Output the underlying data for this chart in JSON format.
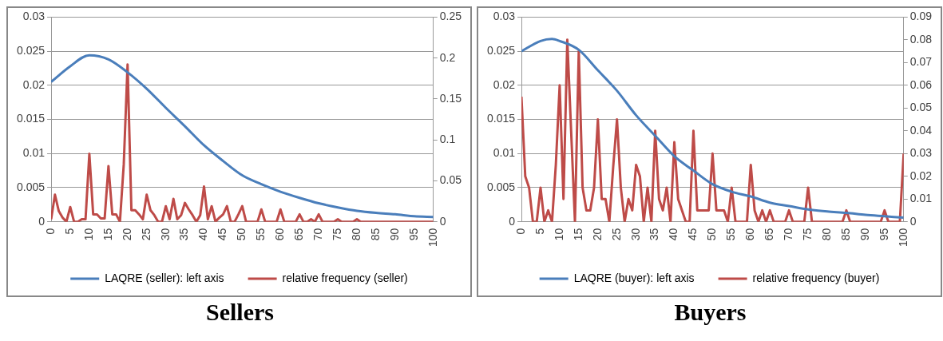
{
  "chart_data": [
    {
      "type": "line",
      "title": "Sellers",
      "xlim": [
        0,
        100
      ],
      "xticks": [
        0,
        5,
        10,
        15,
        20,
        25,
        30,
        35,
        40,
        45,
        50,
        55,
        60,
        65,
        70,
        75,
        80,
        85,
        90,
        95,
        100
      ],
      "ylim": [
        0,
        0.03
      ],
      "yticks": [
        0,
        0.005,
        0.01,
        0.015,
        0.02,
        0.025,
        0.03
      ],
      "y2lim": [
        0,
        0.25
      ],
      "y2ticks": [
        0,
        0.05,
        0.1,
        0.15,
        0.2,
        0.25
      ],
      "grid": "y",
      "legend": "bottom",
      "marker": "none",
      "line_style": "solid",
      "series": [
        {
          "name": "LAQRE (seller): left axis",
          "color": "#4a7ebb",
          "x": [
            0,
            5,
            10,
            15,
            20,
            25,
            30,
            35,
            40,
            45,
            50,
            55,
            60,
            65,
            70,
            75,
            80,
            85,
            90,
            95,
            100
          ],
          "values": [
            0.0205,
            0.0228,
            0.0244,
            0.0238,
            0.0219,
            0.0195,
            0.0167,
            0.014,
            0.0112,
            0.0089,
            0.0068,
            0.0055,
            0.0044,
            0.0035,
            0.0027,
            0.0021,
            0.0016,
            0.0013,
            0.0011,
            0.0008,
            0.0007
          ]
        },
        {
          "name": "relative frequency (seller)",
          "color": "#be4b48",
          "axis": "y2",
          "x": [
            0,
            1,
            2,
            3,
            4,
            5,
            6,
            7,
            8,
            9,
            10,
            11,
            12,
            13,
            14,
            15,
            16,
            17,
            18,
            19,
            20,
            21,
            22,
            23,
            24,
            25,
            26,
            27,
            28,
            29,
            30,
            31,
            32,
            33,
            34,
            35,
            36,
            37,
            38,
            39,
            40,
            41,
            42,
            43,
            44,
            45,
            46,
            47,
            48,
            49,
            50,
            51,
            52,
            53,
            54,
            55,
            56,
            57,
            58,
            59,
            60,
            61,
            62,
            63,
            64,
            65,
            66,
            67,
            68,
            69,
            70,
            71,
            72,
            73,
            74,
            75,
            76,
            77,
            78,
            79,
            80,
            81,
            82,
            83,
            84,
            85,
            86,
            87,
            88,
            89,
            90,
            91,
            92,
            93,
            94,
            95,
            96,
            97,
            98,
            99,
            100
          ],
          "values": [
            0.003,
            0.033,
            0.013,
            0.005,
            0,
            0.018,
            0,
            0,
            0.003,
            0.003,
            0.083,
            0.009,
            0.009,
            0.004,
            0.004,
            0.068,
            0.009,
            0.009,
            0,
            0.07,
            0.192,
            0.014,
            0.014,
            0.009,
            0.003,
            0.033,
            0.014,
            0.008,
            0,
            0,
            0.019,
            0.003,
            0.028,
            0.003,
            0.008,
            0.023,
            0.015,
            0.008,
            0,
            0.008,
            0.043,
            0.003,
            0.019,
            0,
            0.005,
            0.009,
            0.019,
            0,
            0,
            0.009,
            0.019,
            0,
            0,
            0,
            0,
            0.015,
            0,
            0,
            0,
            0,
            0.015,
            0,
            0,
            0,
            0,
            0.009,
            0,
            0,
            0.003,
            0,
            0.009,
            0,
            0,
            0,
            0,
            0.003,
            0,
            0,
            0,
            0,
            0.003,
            0,
            0,
            0,
            0,
            0,
            0,
            0,
            0,
            0,
            0,
            0,
            0,
            0,
            0,
            0,
            0,
            0,
            0,
            0,
            0
          ]
        }
      ]
    },
    {
      "type": "line",
      "title": "Buyers",
      "xlim": [
        0,
        100
      ],
      "xticks": [
        0,
        5,
        10,
        15,
        20,
        25,
        30,
        35,
        40,
        45,
        50,
        55,
        60,
        65,
        70,
        75,
        80,
        85,
        90,
        95,
        100
      ],
      "ylim": [
        0,
        0.03
      ],
      "yticks": [
        0,
        0.005,
        0.01,
        0.015,
        0.02,
        0.025,
        0.03
      ],
      "y2lim": [
        0,
        0.09
      ],
      "y2ticks": [
        0,
        0.01,
        0.02,
        0.03,
        0.04,
        0.05,
        0.06,
        0.07,
        0.08,
        0.09
      ],
      "grid": "y",
      "legend": "bottom",
      "marker": "none",
      "line_style": "solid",
      "series": [
        {
          "name": "LAQRE (buyer): left axis",
          "color": "#4a7ebb",
          "x": [
            0,
            5,
            8,
            10,
            15,
            20,
            25,
            30,
            35,
            40,
            45,
            50,
            55,
            60,
            65,
            70,
            75,
            80,
            85,
            90,
            95,
            100
          ],
          "values": [
            0.025,
            0.0265,
            0.0268,
            0.0265,
            0.0252,
            0.0222,
            0.0192,
            0.0156,
            0.0126,
            0.0096,
            0.0075,
            0.0055,
            0.0044,
            0.0037,
            0.0028,
            0.0023,
            0.0018,
            0.0015,
            0.0013,
            0.001,
            0.0008,
            0.0006
          ]
        },
        {
          "name": "relative frequency (buyer)",
          "color": "#be4b48",
          "axis": "y2",
          "x": [
            0,
            1,
            2,
            3,
            4,
            5,
            6,
            7,
            8,
            9,
            10,
            11,
            12,
            13,
            14,
            15,
            16,
            17,
            18,
            19,
            20,
            21,
            22,
            23,
            24,
            25,
            26,
            27,
            28,
            29,
            30,
            31,
            32,
            33,
            34,
            35,
            36,
            37,
            38,
            39,
            40,
            41,
            42,
            43,
            44,
            45,
            46,
            47,
            48,
            49,
            50,
            51,
            52,
            53,
            54,
            55,
            56,
            57,
            58,
            59,
            60,
            61,
            62,
            63,
            64,
            65,
            66,
            67,
            68,
            69,
            70,
            71,
            72,
            73,
            74,
            75,
            76,
            77,
            78,
            79,
            80,
            81,
            82,
            83,
            84,
            85,
            86,
            87,
            88,
            89,
            90,
            91,
            92,
            93,
            94,
            95,
            96,
            97,
            98,
            99,
            100
          ],
          "values": [
            0.055,
            0.02,
            0.015,
            0,
            0,
            0.015,
            0,
            0.005,
            0,
            0.025,
            0.06,
            0.01,
            0.08,
            0.04,
            0,
            0.075,
            0.015,
            0.005,
            0.005,
            0.015,
            0.045,
            0.01,
            0.01,
            0,
            0.024,
            0.045,
            0.015,
            0,
            0.01,
            0.005,
            0.025,
            0.02,
            0,
            0.015,
            0,
            0.04,
            0.01,
            0.005,
            0.015,
            0,
            0.035,
            0.01,
            0.005,
            0,
            0,
            0.04,
            0.005,
            0.005,
            0.005,
            0.005,
            0.03,
            0.005,
            0.005,
            0.005,
            0,
            0.015,
            0,
            0,
            0,
            0,
            0.025,
            0.005,
            0,
            0.005,
            0,
            0.005,
            0,
            0,
            0,
            0,
            0.005,
            0,
            0,
            0,
            0,
            0.015,
            0,
            0,
            0,
            0,
            0,
            0,
            0,
            0,
            0,
            0.005,
            0,
            0,
            0,
            0,
            0,
            0,
            0,
            0,
            0,
            0.005,
            0,
            0,
            0,
            0,
            0.03
          ]
        }
      ]
    }
  ]
}
